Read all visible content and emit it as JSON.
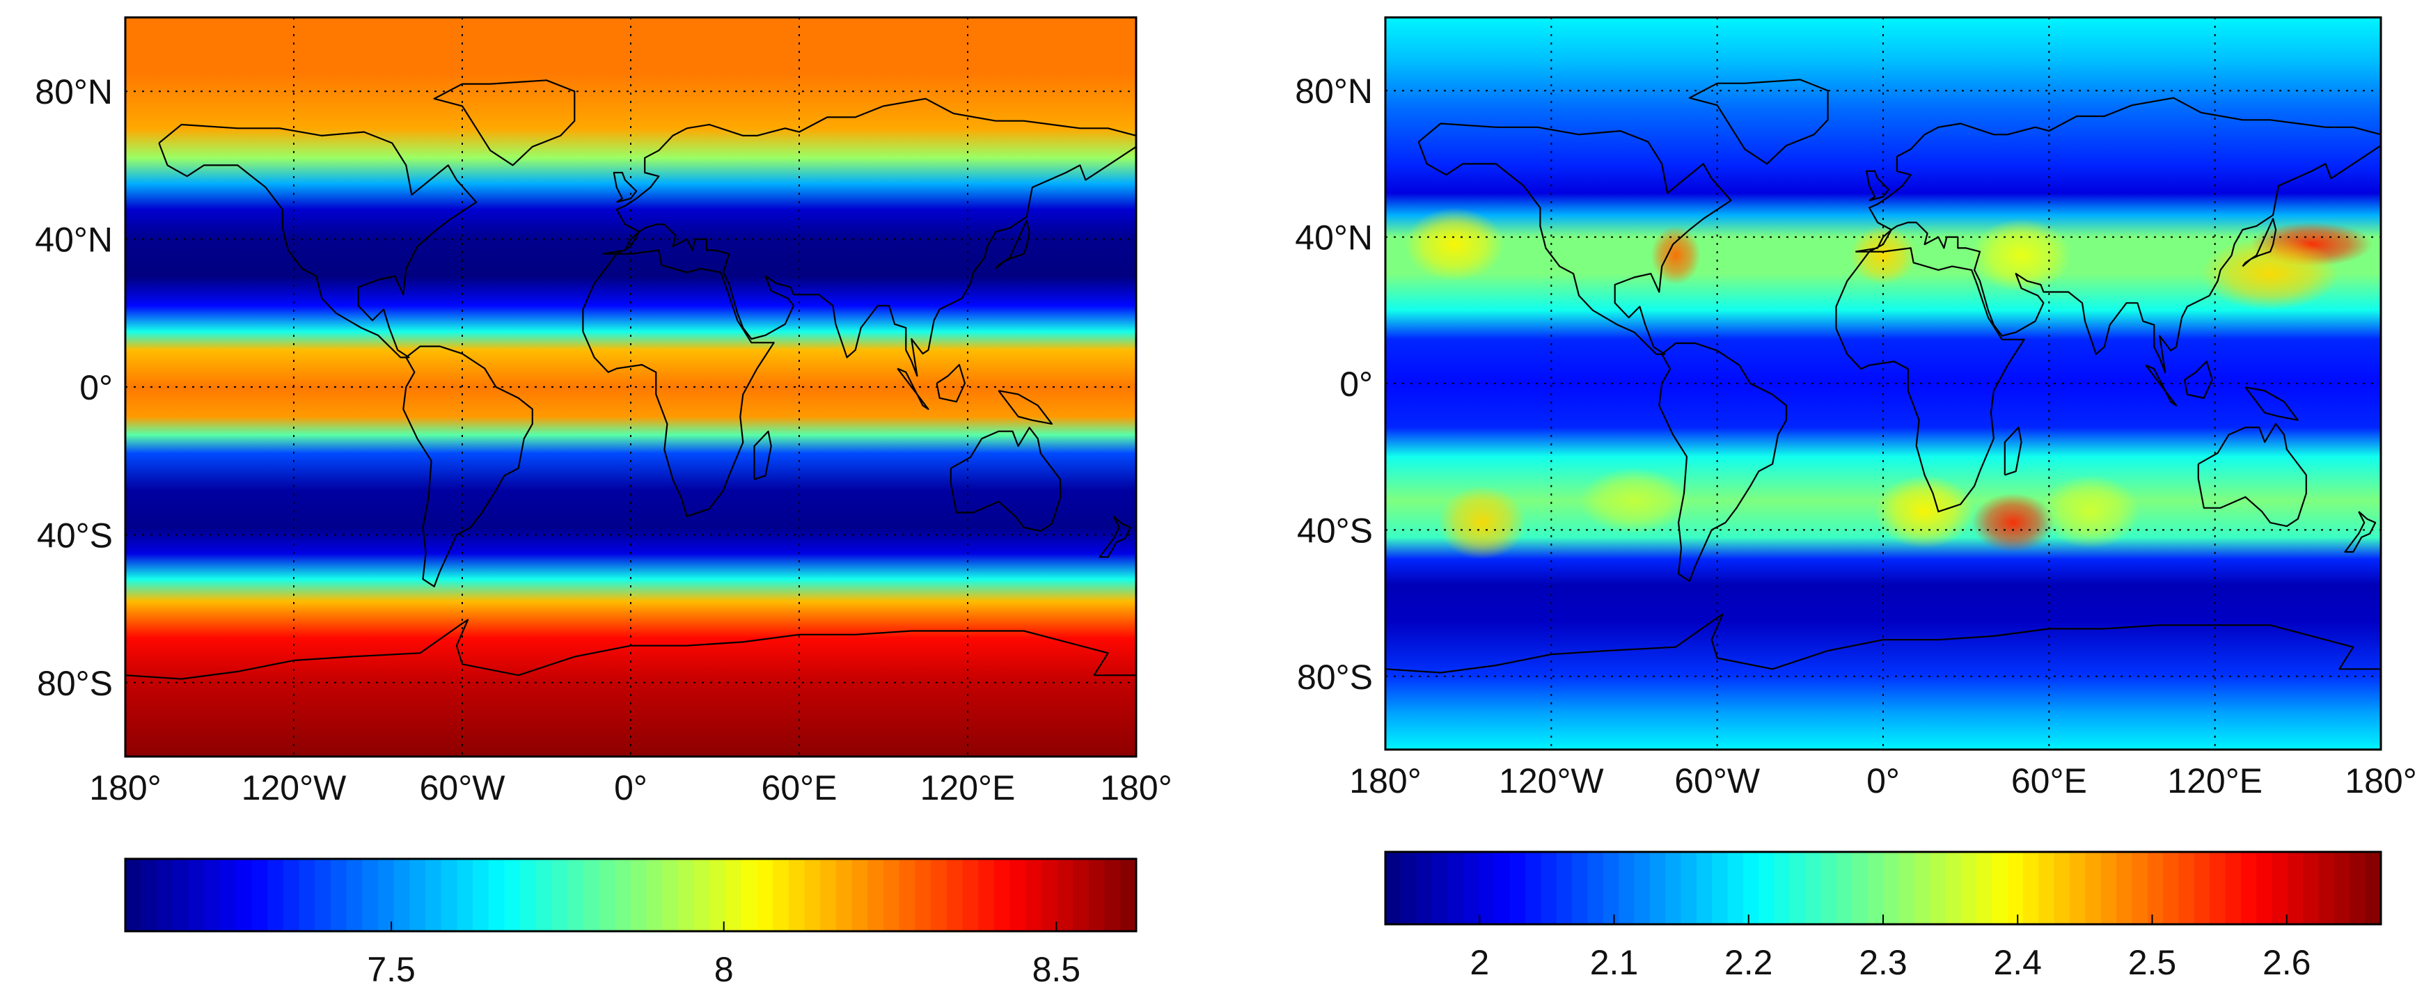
{
  "figure": {
    "panels": [
      {
        "id": "left",
        "lat_ticks": [
          {
            "lat": 80,
            "label": "80°N"
          },
          {
            "lat": 40,
            "label": "40°N"
          },
          {
            "lat": 0,
            "label": "0°"
          },
          {
            "lat": -40,
            "label": "40°S"
          },
          {
            "lat": -80,
            "label": "80°S"
          }
        ],
        "lon_ticks": [
          {
            "lon": -180,
            "label": "180°"
          },
          {
            "lon": -120,
            "label": "120°W"
          },
          {
            "lon": -60,
            "label": "60°W"
          },
          {
            "lon": 0,
            "label": "0°"
          },
          {
            "lon": 60,
            "label": "60°E"
          },
          {
            "lon": 120,
            "label": "120°E"
          },
          {
            "lon": 180,
            "label": "180°"
          }
        ],
        "colorbar": {
          "min": 7.1,
          "max": 8.62,
          "ticks": [
            {
              "value": 7.5,
              "label": "7.5"
            },
            {
              "value": 8.0,
              "label": "8"
            },
            {
              "value": 8.5,
              "label": "8.5"
            }
          ]
        },
        "bands": [
          {
            "lat": 100,
            "value": 8.25
          },
          {
            "lat": 85,
            "value": 8.25
          },
          {
            "lat": 70,
            "value": 8.18
          },
          {
            "lat": 62,
            "value": 7.9
          },
          {
            "lat": 55,
            "value": 7.55
          },
          {
            "lat": 48,
            "value": 7.22
          },
          {
            "lat": 40,
            "value": 7.12
          },
          {
            "lat": 30,
            "value": 7.1
          },
          {
            "lat": 22,
            "value": 7.3
          },
          {
            "lat": 15,
            "value": 7.7
          },
          {
            "lat": 10,
            "value": 8.15
          },
          {
            "lat": 0,
            "value": 8.25
          },
          {
            "lat": -8,
            "value": 8.2
          },
          {
            "lat": -13,
            "value": 7.8
          },
          {
            "lat": -18,
            "value": 7.4
          },
          {
            "lat": -28,
            "value": 7.15
          },
          {
            "lat": -38,
            "value": 7.12
          },
          {
            "lat": -45,
            "value": 7.25
          },
          {
            "lat": -52,
            "value": 7.7
          },
          {
            "lat": -58,
            "value": 8.15
          },
          {
            "lat": -68,
            "value": 8.42
          },
          {
            "lat": -80,
            "value": 8.52
          },
          {
            "lat": -100,
            "value": 8.6
          }
        ]
      },
      {
        "id": "right",
        "lat_ticks": [
          {
            "lat": 80,
            "label": "80°N"
          },
          {
            "lat": 40,
            "label": "40°N"
          },
          {
            "lat": 0,
            "label": "0°"
          },
          {
            "lat": -40,
            "label": "40°S"
          },
          {
            "lat": -80,
            "label": "80°S"
          }
        ],
        "lon_ticks": [
          {
            "lon": -180,
            "label": "180°"
          },
          {
            "lon": -120,
            "label": "120°W"
          },
          {
            "lon": -60,
            "label": "60°W"
          },
          {
            "lon": 0,
            "label": "0°"
          },
          {
            "lon": 60,
            "label": "60°E"
          },
          {
            "lon": 120,
            "label": "120°E"
          },
          {
            "lon": 180,
            "label": "180°"
          }
        ],
        "colorbar": {
          "min": 1.93,
          "max": 2.67,
          "ticks": [
            {
              "value": 2.0,
              "label": "2"
            },
            {
              "value": 2.1,
              "label": "2.1"
            },
            {
              "value": 2.2,
              "label": "2.2"
            },
            {
              "value": 2.3,
              "label": "2.3"
            },
            {
              "value": 2.4,
              "label": "2.4"
            },
            {
              "value": 2.5,
              "label": "2.5"
            },
            {
              "value": 2.6,
              "label": "2.6"
            }
          ]
        },
        "bands": [
          {
            "lat": 100,
            "value": 2.2
          },
          {
            "lat": 88,
            "value": 2.16
          },
          {
            "lat": 75,
            "value": 2.1
          },
          {
            "lat": 60,
            "value": 2.05
          },
          {
            "lat": 52,
            "value": 2.0
          },
          {
            "lat": 46,
            "value": 2.15
          },
          {
            "lat": 40,
            "value": 2.3
          },
          {
            "lat": 30,
            "value": 2.3
          },
          {
            "lat": 20,
            "value": 2.22
          },
          {
            "lat": 12,
            "value": 2.05
          },
          {
            "lat": 0,
            "value": 2.03
          },
          {
            "lat": -12,
            "value": 2.05
          },
          {
            "lat": -20,
            "value": 2.22
          },
          {
            "lat": -32,
            "value": 2.3
          },
          {
            "lat": -42,
            "value": 2.25
          },
          {
            "lat": -48,
            "value": 2.05
          },
          {
            "lat": -55,
            "value": 1.97
          },
          {
            "lat": -65,
            "value": 1.98
          },
          {
            "lat": -80,
            "value": 2.06
          },
          {
            "lat": -90,
            "value": 2.14
          },
          {
            "lat": -100,
            "value": 2.2
          }
        ],
        "hotspots": [
          {
            "lon": 155,
            "lat": 38,
            "value": 2.55,
            "rlon": 22,
            "rlat": 6
          },
          {
            "lon": 140,
            "lat": 30,
            "value": 2.42,
            "rlon": 25,
            "rlat": 10
          },
          {
            "lon": -155,
            "lat": 38,
            "value": 2.4,
            "rlon": 18,
            "rlat": 10
          },
          {
            "lon": -75,
            "lat": 35,
            "value": 2.5,
            "rlon": 9,
            "rlat": 8
          },
          {
            "lon": 0,
            "lat": 35,
            "value": 2.42,
            "rlon": 12,
            "rlat": 8
          },
          {
            "lon": 50,
            "lat": 35,
            "value": 2.38,
            "rlon": 18,
            "rlat": 10
          },
          {
            "lon": -145,
            "lat": -38,
            "value": 2.42,
            "rlon": 16,
            "rlat": 10
          },
          {
            "lon": 47,
            "lat": -38,
            "value": 2.55,
            "rlon": 15,
            "rlat": 8
          },
          {
            "lon": 15,
            "lat": -35,
            "value": 2.4,
            "rlon": 18,
            "rlat": 10
          },
          {
            "lon": 75,
            "lat": -35,
            "value": 2.36,
            "rlon": 18,
            "rlat": 10
          },
          {
            "lon": -90,
            "lat": -32,
            "value": 2.35,
            "rlon": 20,
            "rlat": 9
          }
        ]
      }
    ]
  }
}
